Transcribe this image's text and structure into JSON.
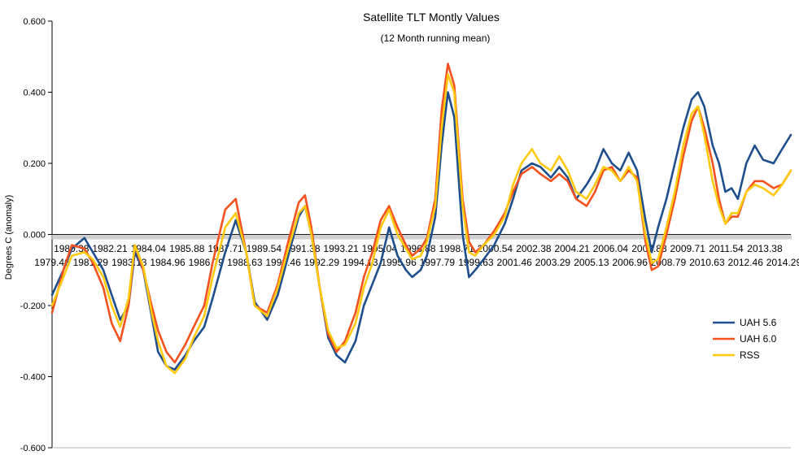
{
  "chart_data": {
    "type": "line",
    "title": "Satellite TLT Montly Values",
    "subtitle": "(12 Month running mean)",
    "xlabel": "",
    "ylabel": "Degrees C (anomaly)",
    "ylim": [
      -0.6,
      0.6
    ],
    "xlim": [
      1979.46,
      2014.62
    ],
    "yticks": [
      "0.600",
      "0.400",
      "0.200",
      "0.000",
      "-0.200",
      "-0.400",
      "-0.600"
    ],
    "xticks_upper": [
      "1980.38",
      "1982.21",
      "1984.04",
      "1985.88",
      "1987.71",
      "1989.54",
      "1991.38",
      "1993.21",
      "1995.04",
      "1996.88",
      "1998.71",
      "2000.54",
      "2002.38",
      "2004.21",
      "2006.04",
      "2007.88",
      "2009.71",
      "2011.54",
      "2013.38"
    ],
    "xticks_lower": [
      "1979.46",
      "1981.29",
      "1983.13",
      "1984.96",
      "1986.79",
      "1988.63",
      "1990.46",
      "1992.29",
      "1994.13",
      "1995.96",
      "1997.79",
      "1999.63",
      "2001.46",
      "2003.29",
      "2005.13",
      "2006.96",
      "2008.79",
      "2010.63",
      "2012.46",
      "2014.29"
    ],
    "grid": false,
    "legend_position": "right",
    "series": [
      {
        "name": "UAH 5.6",
        "color": "#1f4e8c",
        "x": [
          1979.46,
          1980.0,
          1980.4,
          1981.0,
          1981.4,
          1981.9,
          1982.3,
          1982.7,
          1983.1,
          1983.4,
          1983.8,
          1984.2,
          1984.5,
          1984.9,
          1985.3,
          1985.8,
          1986.2,
          1986.7,
          1987.1,
          1987.7,
          1988.2,
          1988.7,
          1989.1,
          1989.7,
          1990.2,
          1990.7,
          1991.2,
          1991.5,
          1991.8,
          1992.2,
          1992.6,
          1993.0,
          1993.4,
          1993.9,
          1994.3,
          1994.7,
          1995.1,
          1995.5,
          1995.9,
          1996.3,
          1996.6,
          1997.0,
          1997.3,
          1997.7,
          1998.0,
          1998.3,
          1998.6,
          1999.0,
          1999.3,
          1999.6,
          2000.0,
          2000.5,
          2001.0,
          2001.4,
          2001.8,
          2002.3,
          2002.7,
          2003.2,
          2003.6,
          2004.0,
          2004.4,
          2004.9,
          2005.3,
          2005.7,
          2006.1,
          2006.5,
          2006.9,
          2007.3,
          2007.7,
          2008.0,
          2008.3,
          2008.7,
          2009.1,
          2009.5,
          2009.9,
          2010.2,
          2010.5,
          2010.9,
          2011.2,
          2011.5,
          2011.8,
          2012.1,
          2012.5,
          2012.9,
          2013.3,
          2013.8,
          2014.2,
          2014.62
        ],
        "y": [
          -0.17,
          -0.1,
          -0.04,
          -0.01,
          -0.05,
          -0.1,
          -0.17,
          -0.24,
          -0.2,
          -0.05,
          -0.1,
          -0.23,
          -0.33,
          -0.37,
          -0.38,
          -0.34,
          -0.3,
          -0.26,
          -0.18,
          -0.05,
          0.04,
          -0.05,
          -0.19,
          -0.24,
          -0.17,
          -0.06,
          0.05,
          0.08,
          0.0,
          -0.15,
          -0.29,
          -0.34,
          -0.36,
          -0.3,
          -0.2,
          -0.14,
          -0.08,
          0.02,
          -0.06,
          -0.1,
          -0.12,
          -0.1,
          -0.06,
          0.05,
          0.25,
          0.4,
          0.33,
          0.0,
          -0.12,
          -0.1,
          -0.07,
          -0.03,
          0.03,
          0.1,
          0.18,
          0.2,
          0.19,
          0.16,
          0.19,
          0.16,
          0.1,
          0.14,
          0.18,
          0.24,
          0.2,
          0.18,
          0.23,
          0.18,
          0.04,
          -0.05,
          0.02,
          0.1,
          0.2,
          0.3,
          0.38,
          0.4,
          0.36,
          0.25,
          0.2,
          0.12,
          0.13,
          0.1,
          0.2,
          0.25,
          0.21,
          0.2,
          0.24,
          0.28
        ]
      },
      {
        "name": "UAH 6.0",
        "color": "#f4511e",
        "x": [
          1979.46,
          1980.0,
          1980.4,
          1981.0,
          1981.4,
          1981.9,
          1982.3,
          1982.7,
          1983.1,
          1983.4,
          1983.8,
          1984.2,
          1984.5,
          1984.9,
          1985.3,
          1985.8,
          1986.2,
          1986.7,
          1987.1,
          1987.7,
          1988.2,
          1988.7,
          1989.1,
          1989.7,
          1990.2,
          1990.7,
          1991.2,
          1991.5,
          1991.8,
          1992.2,
          1992.6,
          1993.0,
          1993.4,
          1993.9,
          1994.3,
          1994.7,
          1995.1,
          1995.5,
          1995.9,
          1996.3,
          1996.6,
          1997.0,
          1997.3,
          1997.7,
          1998.0,
          1998.3,
          1998.6,
          1999.0,
          1999.3,
          1999.6,
          2000.0,
          2000.5,
          2001.0,
          2001.4,
          2001.8,
          2002.3,
          2002.7,
          2003.2,
          2003.6,
          2004.0,
          2004.4,
          2004.9,
          2005.3,
          2005.7,
          2006.1,
          2006.5,
          2006.9,
          2007.3,
          2007.7,
          2008.0,
          2008.3,
          2008.7,
          2009.1,
          2009.5,
          2009.9,
          2010.2,
          2010.5,
          2010.9,
          2011.2,
          2011.5,
          2011.8,
          2012.1,
          2012.5,
          2012.9,
          2013.3,
          2013.8,
          2014.2,
          2014.62
        ],
        "y": [
          -0.22,
          -0.1,
          -0.03,
          -0.04,
          -0.08,
          -0.15,
          -0.25,
          -0.3,
          -0.2,
          -0.03,
          -0.1,
          -0.2,
          -0.27,
          -0.33,
          -0.36,
          -0.31,
          -0.26,
          -0.2,
          -0.08,
          0.07,
          0.1,
          -0.05,
          -0.2,
          -0.22,
          -0.14,
          -0.02,
          0.09,
          0.11,
          0.02,
          -0.15,
          -0.28,
          -0.33,
          -0.3,
          -0.22,
          -0.12,
          -0.05,
          0.04,
          0.08,
          0.02,
          -0.03,
          -0.06,
          -0.04,
          -0.01,
          0.1,
          0.35,
          0.48,
          0.42,
          0.1,
          -0.02,
          -0.05,
          -0.03,
          0.01,
          0.06,
          0.12,
          0.17,
          0.19,
          0.17,
          0.15,
          0.17,
          0.15,
          0.1,
          0.08,
          0.12,
          0.18,
          0.19,
          0.15,
          0.18,
          0.16,
          -0.02,
          -0.1,
          -0.09,
          0.0,
          0.1,
          0.22,
          0.32,
          0.36,
          0.3,
          0.2,
          0.1,
          0.03,
          0.05,
          0.05,
          0.12,
          0.15,
          0.15,
          0.13,
          0.14,
          0.18
        ]
      },
      {
        "name": "RSS",
        "color": "#ffc90e",
        "x": [
          1979.46,
          1980.0,
          1980.4,
          1981.0,
          1981.4,
          1981.9,
          1982.3,
          1982.7,
          1983.1,
          1983.4,
          1983.8,
          1984.2,
          1984.5,
          1984.9,
          1985.3,
          1985.8,
          1986.2,
          1986.7,
          1987.1,
          1987.7,
          1988.2,
          1988.7,
          1989.1,
          1989.7,
          1990.2,
          1990.7,
          1991.2,
          1991.5,
          1991.8,
          1992.2,
          1992.6,
          1993.0,
          1993.4,
          1993.9,
          1994.3,
          1994.7,
          1995.1,
          1995.5,
          1995.9,
          1996.3,
          1996.6,
          1997.0,
          1997.3,
          1997.7,
          1998.0,
          1998.3,
          1998.6,
          1999.0,
          1999.3,
          1999.6,
          2000.0,
          2000.5,
          2001.0,
          2001.4,
          2001.8,
          2002.3,
          2002.7,
          2003.2,
          2003.6,
          2004.0,
          2004.4,
          2004.9,
          2005.3,
          2005.7,
          2006.1,
          2006.5,
          2006.9,
          2007.3,
          2007.7,
          2008.0,
          2008.3,
          2008.7,
          2009.1,
          2009.5,
          2009.9,
          2010.2,
          2010.5,
          2010.9,
          2011.2,
          2011.5,
          2011.8,
          2012.1,
          2012.5,
          2012.9,
          2013.3,
          2013.8,
          2014.2,
          2014.62
        ],
        "y": [
          -0.2,
          -0.12,
          -0.06,
          -0.05,
          -0.07,
          -0.12,
          -0.2,
          -0.26,
          -0.18,
          -0.03,
          -0.09,
          -0.22,
          -0.3,
          -0.37,
          -0.39,
          -0.35,
          -0.29,
          -0.23,
          -0.12,
          0.02,
          0.06,
          -0.05,
          -0.2,
          -0.23,
          -0.15,
          -0.04,
          0.06,
          0.08,
          0.0,
          -0.15,
          -0.27,
          -0.32,
          -0.31,
          -0.25,
          -0.15,
          -0.08,
          0.02,
          0.07,
          0.0,
          -0.04,
          -0.07,
          -0.06,
          -0.02,
          0.08,
          0.3,
          0.45,
          0.4,
          0.08,
          -0.05,
          -0.06,
          -0.03,
          0.0,
          0.05,
          0.14,
          0.2,
          0.24,
          0.2,
          0.18,
          0.22,
          0.18,
          0.12,
          0.1,
          0.14,
          0.19,
          0.18,
          0.15,
          0.19,
          0.15,
          0.0,
          -0.08,
          -0.07,
          0.02,
          0.12,
          0.25,
          0.34,
          0.36,
          0.28,
          0.15,
          0.08,
          0.03,
          0.06,
          0.06,
          0.12,
          0.14,
          0.13,
          0.11,
          0.14,
          0.18
        ]
      }
    ]
  }
}
